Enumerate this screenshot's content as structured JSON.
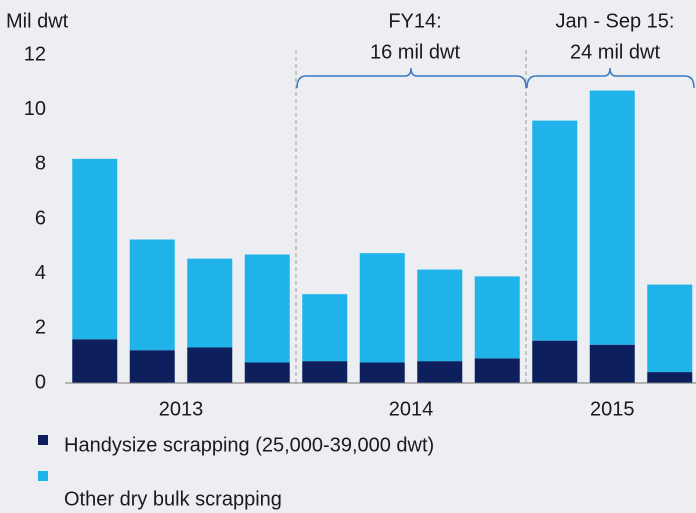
{
  "chart_data": {
    "type": "stacked_bar",
    "ylabel": "Mil dwt",
    "categories": [
      null,
      null,
      null,
      null,
      null,
      null,
      null,
      null,
      null,
      null,
      null
    ],
    "groups": [
      {
        "label": "2013",
        "size": 4
      },
      {
        "label": "2014",
        "size": 4
      },
      {
        "label": "2015",
        "size": 3
      }
    ],
    "series": [
      {
        "name": "Handysize scrapping (25,000-39,000 dwt)",
        "color": "#0d1f5c",
        "values": [
          1.6,
          1.2,
          1.3,
          0.75,
          0.8,
          0.75,
          0.8,
          0.9,
          1.55,
          1.4,
          0.4
        ]
      },
      {
        "name": "Other dry bulk scrapping",
        "color": "#1fb3ea",
        "values": [
          6.6,
          4.05,
          3.25,
          3.95,
          2.45,
          4.0,
          3.35,
          3.0,
          8.05,
          9.3,
          3.2
        ]
      }
    ],
    "ylim": [
      0,
      12
    ],
    "yticks": [
      0,
      2,
      4,
      6,
      8,
      10,
      12
    ],
    "annotations": [
      {
        "lines": [
          "FY14:",
          "16 mil dwt"
        ],
        "group": 1
      },
      {
        "lines": [
          "Jan - Sep 15:",
          "24 mil dwt"
        ],
        "group": 2
      }
    ]
  }
}
